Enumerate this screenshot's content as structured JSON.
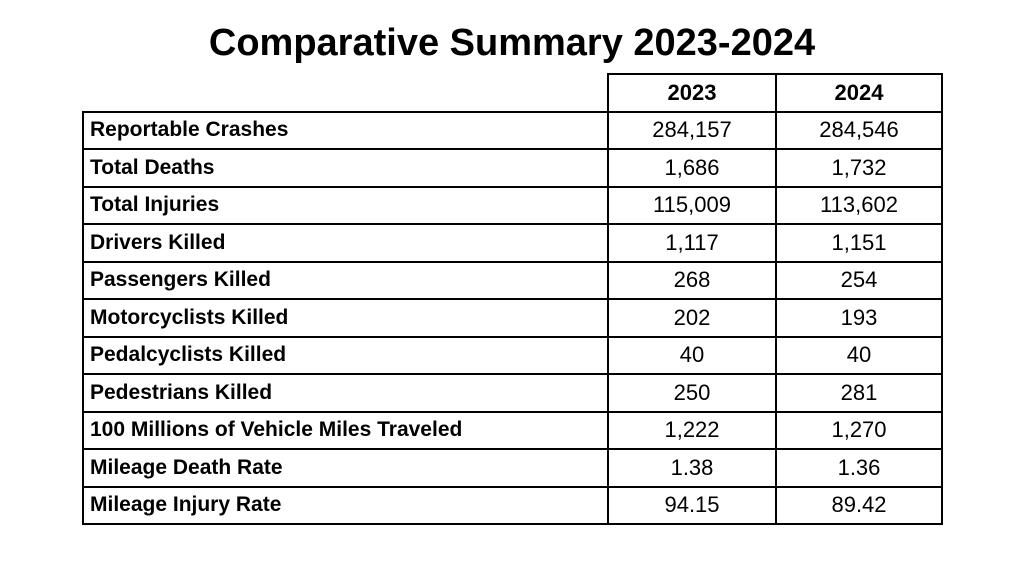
{
  "header": {
    "title": "Comparative Summary 2023-2024"
  },
  "table": {
    "columns": [
      "2023",
      "2024"
    ],
    "rows": [
      [
        "Reportable Crashes",
        "284,157",
        "284,546"
      ],
      [
        "Total Deaths",
        "1,686",
        "1,732"
      ],
      [
        "Total Injuries",
        "115,009",
        "113,602"
      ],
      [
        "Drivers Killed",
        "1,117",
        "1,151"
      ],
      [
        "Passengers Killed",
        "268",
        "254"
      ],
      [
        "Motorcyclists Killed",
        "202",
        "193"
      ],
      [
        "Pedalcyclists Killed",
        "40",
        "40"
      ],
      [
        "Pedestrians Killed",
        "250",
        "281"
      ],
      [
        "100 Millions of Vehicle Miles Traveled",
        "1,222",
        "1,270"
      ],
      [
        "Mileage Death Rate",
        "1.38",
        "1.36"
      ],
      [
        "Mileage Injury Rate",
        "94.15",
        "89.42"
      ]
    ]
  }
}
